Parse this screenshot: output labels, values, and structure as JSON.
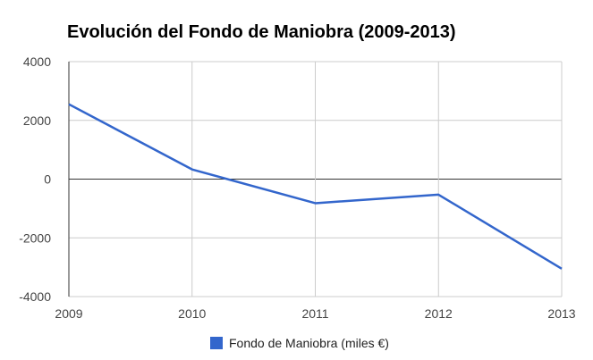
{
  "chart_data": {
    "type": "line",
    "title": "Evolución del Fondo de Maniobra (2009-2013)",
    "x": [
      "2009",
      "2010",
      "2011",
      "2012",
      "2013"
    ],
    "series": [
      {
        "name": "Fondo de Maniobra (miles €)",
        "values": [
          2550,
          330,
          -820,
          -530,
          -3050
        ],
        "color": "#3366cc"
      }
    ],
    "ylim": [
      -4000,
      4000
    ],
    "yticks": [
      "4000",
      "2000",
      "0",
      "-2000",
      "-4000"
    ],
    "grid": true,
    "legend_position": "bottom"
  }
}
